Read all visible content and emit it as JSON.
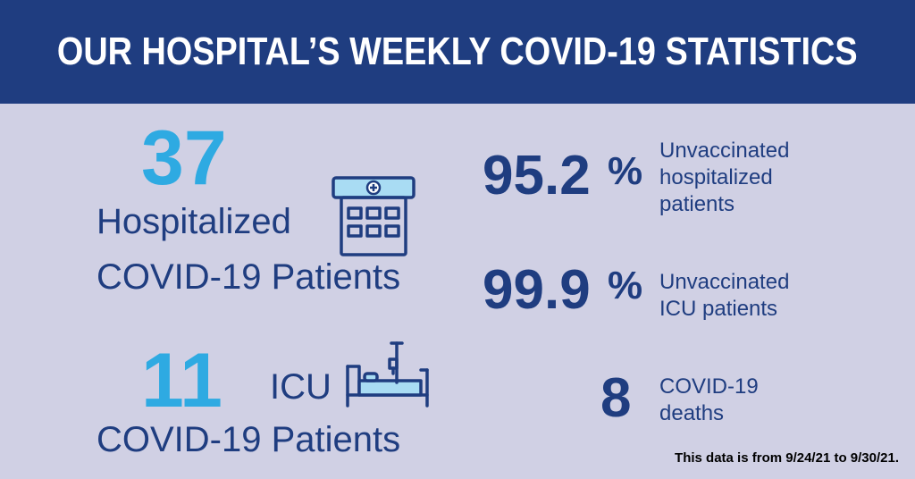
{
  "header": {
    "title": "OUR HOSPITAL’S WEEKLY COVID-19 STATISTICS"
  },
  "hospitalized": {
    "number": "37",
    "label": "Hospitalized",
    "sublabel": "COVID-19 Patients",
    "icon": "hospital-building-icon"
  },
  "icu": {
    "number": "11",
    "label": "ICU",
    "sublabel": "COVID-19 Patients",
    "icon": "hospital-bed-icon"
  },
  "stats": [
    {
      "value": "95.2",
      "unit": "%",
      "label_lines": [
        "Unvaccinated",
        "hospitalized",
        "patients"
      ]
    },
    {
      "value": "99.9",
      "unit": "%",
      "label_lines": [
        "Unvaccinated",
        "ICU patients"
      ]
    },
    {
      "value": "8",
      "unit": "",
      "label_lines": [
        "COVID-19",
        "deaths"
      ]
    }
  ],
  "footnote": "This data is from 9/24/21 to 9/30/21.",
  "colors": {
    "banner": "#1f3d80",
    "background": "#d0d0e4",
    "accent": "#2eaae2",
    "navy": "#1f3d80"
  }
}
